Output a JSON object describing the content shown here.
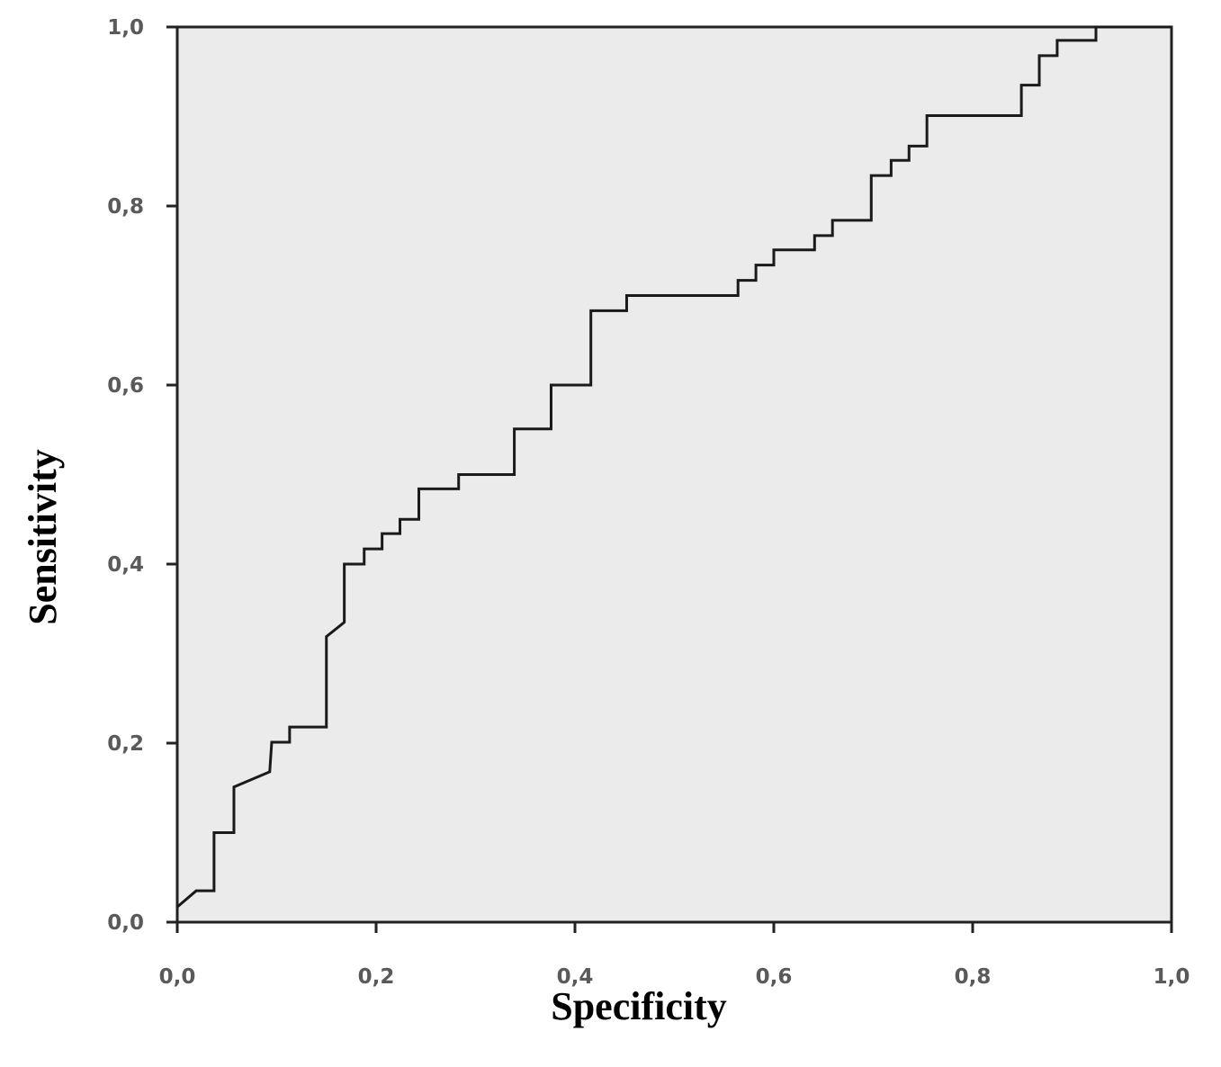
{
  "chart_data": {
    "type": "line",
    "x_label": "Specificity",
    "y_label": "Sensitivity",
    "xlim": [
      0,
      1
    ],
    "ylim": [
      0,
      1
    ],
    "xticks": [
      {
        "value": 0,
        "label": "0,0"
      },
      {
        "value": 0.2,
        "label": "0,2"
      },
      {
        "value": 0.4,
        "label": "0,4"
      },
      {
        "value": 0.6,
        "label": "0,6"
      },
      {
        "value": 0.8,
        "label": "0,8"
      },
      {
        "value": 1,
        "label": "1,0"
      }
    ],
    "yticks": [
      {
        "value": 0,
        "label": "0,0"
      },
      {
        "value": 0.2,
        "label": "0,2"
      },
      {
        "value": 0.4,
        "label": "0,4"
      },
      {
        "value": 0.6,
        "label": "0,6"
      },
      {
        "value": 0.8,
        "label": "0,8"
      },
      {
        "value": 1,
        "label": "1,0"
      }
    ],
    "color": "#1a1a1a",
    "background": "#ebebeb",
    "x": [
      0,
      0.019,
      0.037,
      0.037,
      0.057,
      0.057,
      0.093,
      0.095,
      0.113,
      0.113,
      0.15,
      0.15,
      0.168,
      0.168,
      0.188,
      0.188,
      0.206,
      0.206,
      0.224,
      0.224,
      0.243,
      0.243,
      0.283,
      0.283,
      0.339,
      0.339,
      0.376,
      0.376,
      0.416,
      0.416,
      0.452,
      0.452,
      0.564,
      0.564,
      0.582,
      0.582,
      0.6,
      0.6,
      0.641,
      0.641,
      0.659,
      0.659,
      0.698,
      0.698,
      0.718,
      0.718,
      0.736,
      0.736,
      0.754,
      0.754,
      0.849,
      0.849,
      0.867,
      0.867,
      0.885,
      0.885,
      0.924,
      0.924,
      1
    ],
    "values": [
      0.017,
      0.035,
      0.035,
      0.1,
      0.1,
      0.151,
      0.168,
      0.201,
      0.201,
      0.218,
      0.218,
      0.319,
      0.335,
      0.4,
      0.4,
      0.417,
      0.417,
      0.434,
      0.434,
      0.45,
      0.45,
      0.484,
      0.484,
      0.5,
      0.5,
      0.551,
      0.551,
      0.6,
      0.6,
      0.683,
      0.683,
      0.7,
      0.7,
      0.717,
      0.717,
      0.734,
      0.734,
      0.751,
      0.751,
      0.767,
      0.767,
      0.784,
      0.784,
      0.834,
      0.834,
      0.851,
      0.851,
      0.867,
      0.867,
      0.901,
      0.901,
      0.935,
      0.935,
      0.968,
      0.968,
      0.985,
      0.985,
      1,
      1
    ]
  }
}
